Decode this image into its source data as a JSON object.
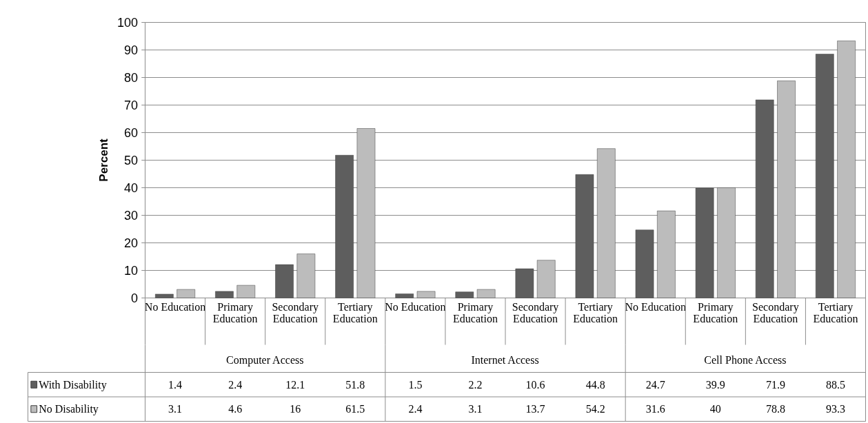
{
  "chart_data": {
    "type": "bar",
    "ylabel": "Percent",
    "categories": [
      "No Education",
      "Primary Education",
      "Secondary Education",
      "Tertiary Education",
      "No Education",
      "Primary Education",
      "Secondary Education",
      "Tertiary Education",
      "No Education",
      "Primary Education",
      "Secondary Education",
      "Tertiary Education"
    ],
    "annotations": [
      "Computer Access",
      "Internet Access",
      "Cell Phone Access"
    ],
    "series": [
      {
        "name": "With Disability",
        "color": "#5e5e5e",
        "values": [
          1.4,
          2.4,
          12.1,
          51.8,
          1.5,
          2.2,
          10.6,
          44.8,
          24.7,
          39.9,
          71.9,
          88.5
        ]
      },
      {
        "name": "No Disability",
        "color": "#bcbcbc",
        "values": [
          3.1,
          4.6,
          16,
          61.5,
          2.4,
          3.1,
          13.7,
          54.2,
          31.6,
          40,
          78.8,
          93.3
        ]
      }
    ],
    "ylim": [
      0,
      100
    ],
    "yticks": [
      0,
      10,
      20,
      30,
      40,
      50,
      60,
      70,
      80,
      90,
      100
    ],
    "grid": "y",
    "legend": "bottom",
    "data_labels": true
  }
}
